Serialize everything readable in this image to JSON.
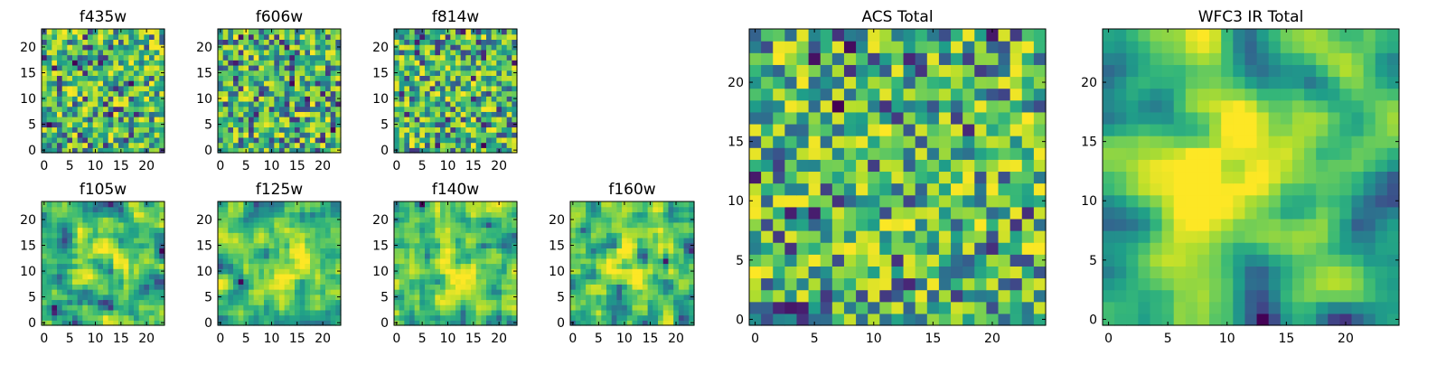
{
  "chart_data": [
    {
      "type": "heatmap",
      "title": "f435w",
      "xticks": [
        "0",
        "5",
        "10",
        "15",
        "20"
      ],
      "yticks": [
        "0",
        "5",
        "10",
        "15",
        "20"
      ],
      "grid": [
        24,
        24
      ],
      "xlim": [
        0,
        24
      ],
      "ylim": [
        0,
        24
      ],
      "colormap": "viridis",
      "seed": 11,
      "smooth": 0,
      "hot": []
    },
    {
      "type": "heatmap",
      "title": "f606w",
      "xticks": [
        "0",
        "5",
        "10",
        "15",
        "20"
      ],
      "yticks": [
        "0",
        "5",
        "10",
        "15",
        "20"
      ],
      "grid": [
        24,
        24
      ],
      "xlim": [
        0,
        24
      ],
      "ylim": [
        0,
        24
      ],
      "colormap": "viridis",
      "seed": 23,
      "smooth": 0,
      "hot": []
    },
    {
      "type": "heatmap",
      "title": "f814w",
      "xticks": [
        "0",
        "5",
        "10",
        "15",
        "20"
      ],
      "yticks": [
        "0",
        "5",
        "10",
        "15",
        "20"
      ],
      "grid": [
        24,
        24
      ],
      "xlim": [
        0,
        24
      ],
      "ylim": [
        0,
        24
      ],
      "colormap": "viridis",
      "seed": 37,
      "smooth": 0,
      "hot": []
    },
    {
      "type": "heatmap",
      "title": "f105w",
      "xticks": [
        "0",
        "5",
        "10",
        "15",
        "20"
      ],
      "yticks": [
        "0",
        "5",
        "10",
        "15",
        "20"
      ],
      "grid": [
        24,
        24
      ],
      "xlim": [
        0,
        24
      ],
      "ylim": [
        0,
        24
      ],
      "colormap": "viridis",
      "seed": 41,
      "smooth": 1,
      "hot": [
        [
          12,
          12,
          4,
          0.25
        ]
      ]
    },
    {
      "type": "heatmap",
      "title": "f125w",
      "xticks": [
        "0",
        "5",
        "10",
        "15",
        "20"
      ],
      "yticks": [
        "0",
        "5",
        "10",
        "15",
        "20"
      ],
      "grid": [
        24,
        24
      ],
      "xlim": [
        0,
        24
      ],
      "ylim": [
        0,
        24
      ],
      "colormap": "viridis",
      "seed": 53,
      "smooth": 1,
      "hot": [
        [
          12,
          12,
          4,
          0.2
        ]
      ]
    },
    {
      "type": "heatmap",
      "title": "f140w",
      "xticks": [
        "0",
        "5",
        "10",
        "15",
        "20"
      ],
      "yticks": [
        "0",
        "5",
        "10",
        "15",
        "20"
      ],
      "grid": [
        24,
        24
      ],
      "xlim": [
        0,
        24
      ],
      "ylim": [
        0,
        24
      ],
      "colormap": "viridis",
      "seed": 67,
      "smooth": 1,
      "hot": [
        [
          12,
          12,
          4,
          0.2
        ]
      ]
    },
    {
      "type": "heatmap",
      "title": "f160w",
      "xticks": [
        "0",
        "5",
        "10",
        "15",
        "20"
      ],
      "yticks": [
        "0",
        "5",
        "10",
        "15",
        "20"
      ],
      "grid": [
        24,
        24
      ],
      "xlim": [
        0,
        24
      ],
      "ylim": [
        0,
        24
      ],
      "colormap": "viridis",
      "seed": 79,
      "smooth": 1,
      "hot": [
        [
          12,
          12,
          4,
          0.2
        ]
      ]
    },
    {
      "type": "heatmap",
      "title": "ACS Total",
      "xticks": [
        "0",
        "5",
        "10",
        "15",
        "20"
      ],
      "yticks": [
        "0",
        "5",
        "10",
        "15",
        "20"
      ],
      "grid": [
        25,
        25
      ],
      "xlim": [
        0,
        25
      ],
      "ylim": [
        0,
        25
      ],
      "colormap": "viridis",
      "seed": 97,
      "smooth": 0,
      "hot": []
    },
    {
      "type": "heatmap",
      "title": "WFC3 IR Total",
      "xticks": [
        "0",
        "5",
        "10",
        "15",
        "20"
      ],
      "yticks": [
        "0",
        "5",
        "10",
        "15",
        "20"
      ],
      "grid": [
        25,
        25
      ],
      "xlim": [
        0,
        25
      ],
      "ylim": [
        0,
        25
      ],
      "colormap": "viridis",
      "seed": 101,
      "smooth": 2,
      "hot": [
        [
          12,
          13,
          4,
          0.45
        ]
      ]
    }
  ]
}
